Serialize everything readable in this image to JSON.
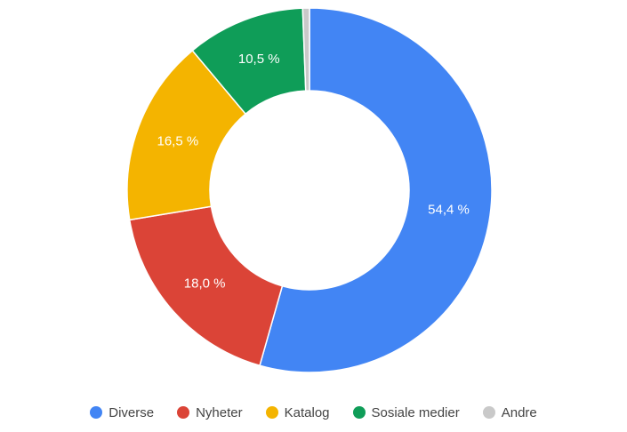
{
  "chart_data": {
    "type": "pie",
    "variant": "donut",
    "title": "",
    "categories": [
      "Diverse",
      "Nyheter",
      "Katalog",
      "Sosiale medier",
      "Andre"
    ],
    "values": [
      54.4,
      18.0,
      16.5,
      10.5,
      0.6
    ],
    "data_labels": [
      "54,4 %",
      "18,0 %",
      "16,5 %",
      "10,5 %",
      ""
    ],
    "colors": [
      "#4285f4",
      "#db4437",
      "#f4b400",
      "#0f9d58",
      "#c9c9c9"
    ],
    "legend_position": "bottom",
    "start_angle": "top",
    "direction": "clockwise"
  }
}
